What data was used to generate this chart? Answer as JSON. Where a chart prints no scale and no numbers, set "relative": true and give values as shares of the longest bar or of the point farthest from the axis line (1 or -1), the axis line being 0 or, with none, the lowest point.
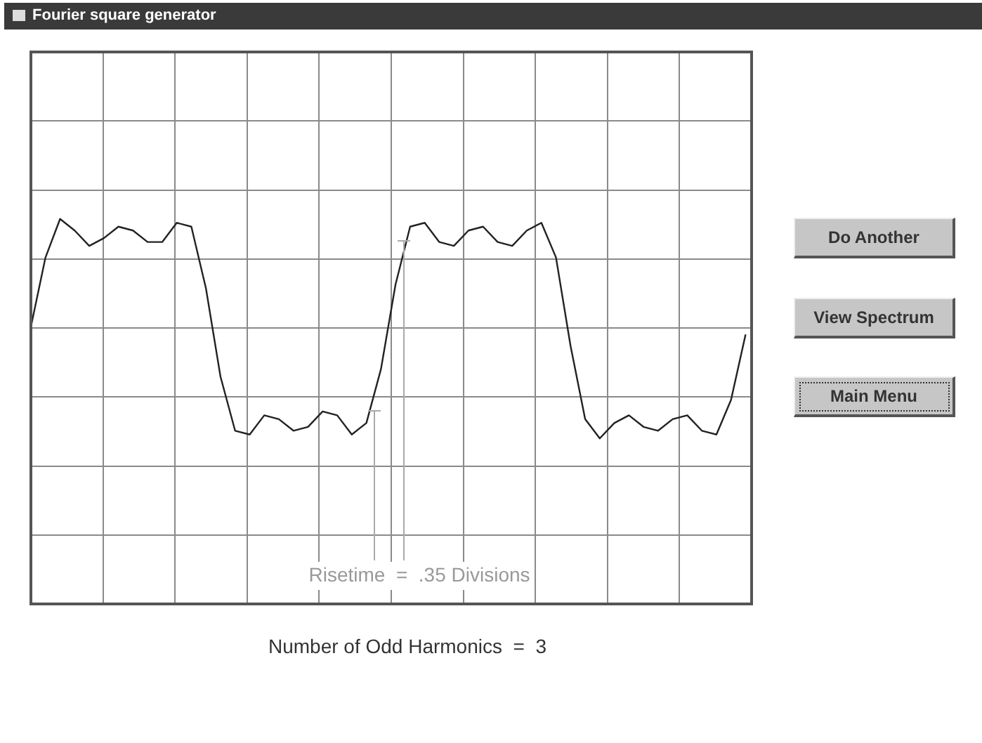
{
  "chart_data": {
    "type": "line",
    "title": "Fourier square generator",
    "relative": true,
    "categories": [
      null,
      null,
      null,
      null,
      null,
      null,
      null,
      null,
      null,
      null,
      null,
      null,
      null,
      null,
      null,
      null,
      null,
      null,
      null,
      null,
      null,
      null,
      null,
      null,
      null,
      null,
      null,
      null,
      null,
      null,
      null,
      null,
      null,
      null,
      null,
      null,
      null,
      null,
      null,
      null,
      null,
      null,
      null,
      null,
      null,
      null,
      null,
      null,
      null,
      null
    ],
    "series": [
      {
        "color": "#222222",
        "values": [
          0.72,
          0.9,
          1,
          0.97,
          0.93,
          0.95,
          0.98,
          0.97,
          0.94,
          0.94,
          0.99,
          0.98,
          0.82,
          0.59,
          0.45,
          0.44,
          0.49,
          0.48,
          0.45,
          0.46,
          0.5,
          0.49,
          0.44,
          0.47,
          0.61,
          0.83,
          0.98,
          0.99,
          0.94,
          0.93,
          0.97,
          0.98,
          0.94,
          0.93,
          0.97,
          0.99,
          0.9,
          0.67,
          0.48,
          0.43,
          0.47,
          0.49,
          0.46,
          0.45,
          0.48,
          0.49,
          0.45,
          0.44,
          0.53,
          0.7
        ]
      }
    ],
    "grid": true,
    "legend": false,
    "marker": "none",
    "line_style": "solid",
    "annotations": [
      "Risetime  =  .35 Divisions",
      "Number of Odd Harmonics  =  3",
      "Do Another",
      "View Spectrum",
      "Main Menu"
    ]
  }
}
